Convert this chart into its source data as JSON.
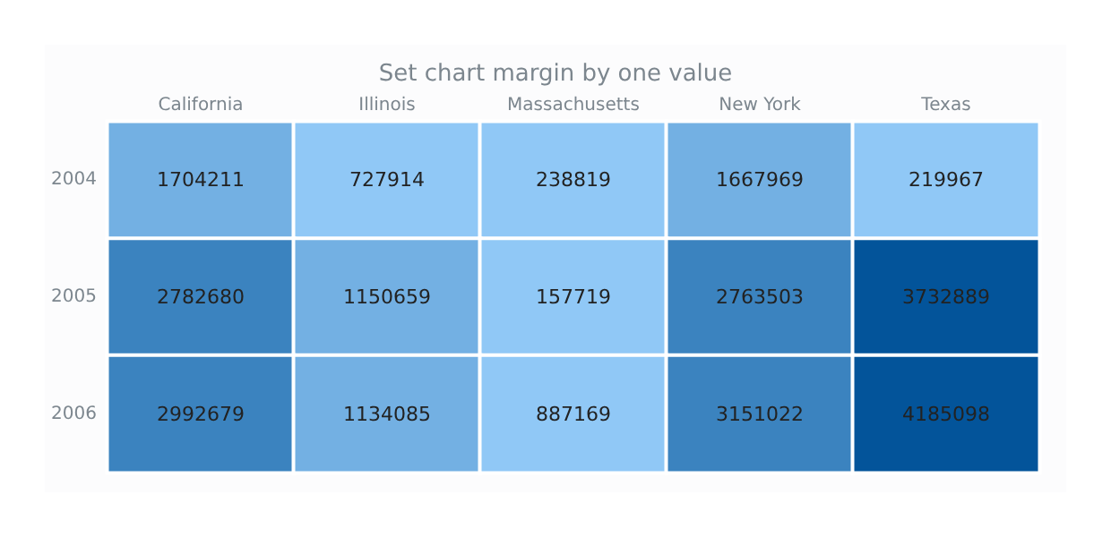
{
  "chart_data": {
    "type": "heatmap",
    "title": "Set chart margin by one value",
    "categories": [
      "California",
      "Illinois",
      "Massachusetts",
      "New York",
      "Texas"
    ],
    "y_categories": [
      "2004",
      "2005",
      "2006"
    ],
    "cells": [
      [
        1704211,
        727914,
        238819,
        1667969,
        219967
      ],
      [
        2782680,
        1150659,
        157719,
        2763503,
        3732889
      ],
      [
        2992679,
        1134085,
        887169,
        3151022,
        4185098
      ]
    ],
    "colors": [
      [
        "#73b0e3",
        "#90c8f6",
        "#90c8f6",
        "#73b0e3",
        "#90c8f6"
      ],
      [
        "#3b83bf",
        "#73b0e3",
        "#90c8f6",
        "#3b83bf",
        "#03549a"
      ],
      [
        "#3b83bf",
        "#73b0e3",
        "#90c8f6",
        "#3b83bf",
        "#03549a"
      ]
    ],
    "data_labels": true
  }
}
